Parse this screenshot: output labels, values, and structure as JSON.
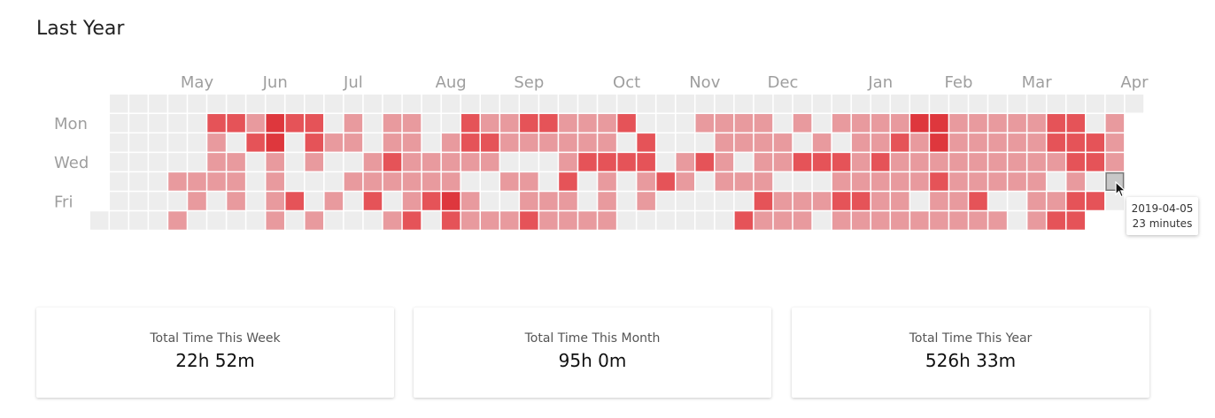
{
  "page": {
    "title": "Last Year"
  },
  "chart_data": {
    "type": "heatmap",
    "title": "Last Year",
    "months": [
      "May",
      "Jun",
      "Jul",
      "Aug",
      "Sep",
      "Oct",
      "Nov",
      "Dec",
      "Jan",
      "Feb",
      "Mar",
      "Apr"
    ],
    "weekday_labels": [
      "Mon",
      "Wed",
      "Fri"
    ],
    "levels": [
      "0000000000000000000000000000000000000000000000000000",
      "0000022132201011002112211120001111010111133111112201",
      "0000010230211011012211111102000111101011213111112221",
      "0000011010100121111100012222012101122212111111111221",
      "0001111010001111110011020101210111000111112111110101",
      "0000101012010201231001110101000002111221101120011220",
      "0000100001010001202111211110000002111011111111101222"
    ],
    "color_scale": [
      "#ededed",
      "#e89a9e",
      "#e55358",
      "#de373d",
      "#b7222c"
    ],
    "tooltip": {
      "date": "2019-04-05",
      "value": "23 minutes"
    }
  },
  "stats": [
    {
      "label": "Total Time This Week",
      "value": "22h 52m"
    },
    {
      "label": "Total Time This Month",
      "value": "95h 0m"
    },
    {
      "label": "Total Time This Year",
      "value": "526h 33m"
    }
  ]
}
